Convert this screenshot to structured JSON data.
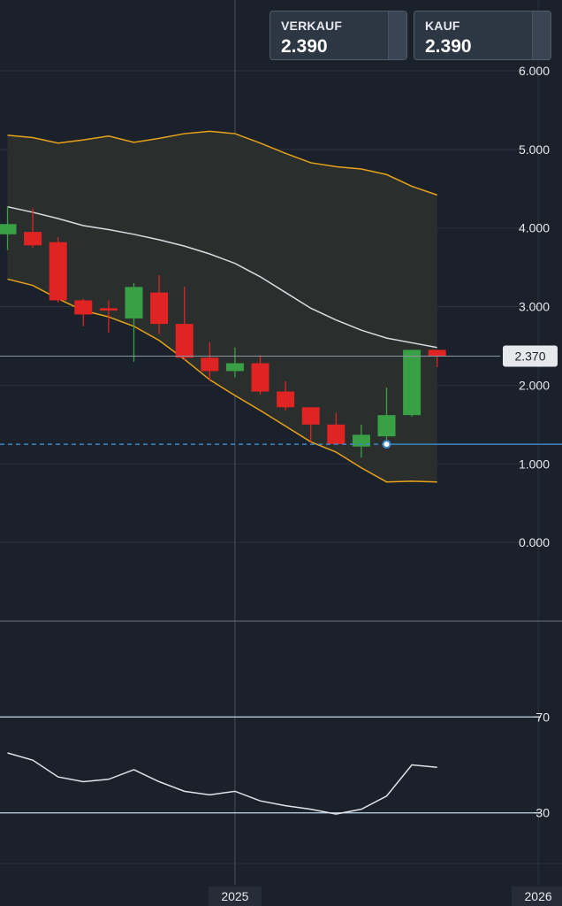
{
  "quote": {
    "sell_label": "VERKAUF",
    "sell_value": "2.390",
    "buy_label": "KAUF",
    "buy_value": "2.390"
  },
  "colors": {
    "background": "#1b212a",
    "grid": "#2c333d",
    "up": "#3aa046",
    "down": "#e02424",
    "bollinger_band": "#e8a21a",
    "middle_band": "#d9dde3",
    "rsi_line": "#e0e3e8",
    "rsi_levels": "#c3d7ec",
    "price_line": "#8d97a3",
    "reference_line": "#3d86c6"
  },
  "chart_data": [
    {
      "type": "candlestick",
      "name": "price",
      "y_ticks": [
        "6.000",
        "5.000",
        "4.000",
        "3.000",
        "2.000",
        "1.000",
        "0.000"
      ],
      "y_tick_values": [
        6,
        5,
        4,
        3,
        2,
        1,
        0
      ],
      "ylim": [
        -1.0,
        6.9
      ],
      "x_ticks": [
        "2025",
        "2026"
      ],
      "x_tick_index": [
        9,
        21
      ],
      "current_price_label": "2.370",
      "current_price": 2.37,
      "reference_level": 1.25,
      "marker": {
        "index": 15,
        "value": 1.25
      },
      "candles": [
        {
          "i": 0,
          "open": 3.92,
          "high": 4.27,
          "low": 3.72,
          "close": 4.05
        },
        {
          "i": 1,
          "open": 3.95,
          "high": 4.25,
          "low": 3.75,
          "close": 3.78
        },
        {
          "i": 2,
          "open": 3.82,
          "high": 3.88,
          "low": 3.05,
          "close": 3.08
        },
        {
          "i": 3,
          "open": 3.08,
          "high": 3.1,
          "low": 2.75,
          "close": 2.9
        },
        {
          "i": 4,
          "open": 2.98,
          "high": 3.08,
          "low": 2.67,
          "close": 2.95
        },
        {
          "i": 5,
          "open": 2.85,
          "high": 3.3,
          "low": 2.3,
          "close": 3.25
        },
        {
          "i": 6,
          "open": 3.18,
          "high": 3.4,
          "low": 2.65,
          "close": 2.78
        },
        {
          "i": 7,
          "open": 2.78,
          "high": 3.25,
          "low": 2.32,
          "close": 2.35
        },
        {
          "i": 8,
          "open": 2.35,
          "high": 2.55,
          "low": 2.05,
          "close": 2.18
        },
        {
          "i": 9,
          "open": 2.18,
          "high": 2.48,
          "low": 2.1,
          "close": 2.28
        },
        {
          "i": 10,
          "open": 2.28,
          "high": 2.38,
          "low": 1.88,
          "close": 1.92
        },
        {
          "i": 11,
          "open": 1.92,
          "high": 2.05,
          "low": 1.68,
          "close": 1.72
        },
        {
          "i": 12,
          "open": 1.72,
          "high": 1.72,
          "low": 1.28,
          "close": 1.5
        },
        {
          "i": 13,
          "open": 1.5,
          "high": 1.65,
          "low": 1.25,
          "close": 1.25
        },
        {
          "i": 14,
          "open": 1.22,
          "high": 1.5,
          "low": 1.08,
          "close": 1.37
        },
        {
          "i": 15,
          "open": 1.35,
          "high": 1.97,
          "low": 1.3,
          "close": 1.62
        },
        {
          "i": 16,
          "open": 1.62,
          "high": 2.45,
          "low": 1.6,
          "close": 2.45
        },
        {
          "i": 17,
          "open": 2.45,
          "high": 2.45,
          "low": 2.23,
          "close": 2.37
        }
      ],
      "bollinger_upper": [
        5.18,
        5.15,
        5.08,
        5.12,
        5.17,
        5.09,
        5.14,
        5.2,
        5.23,
        5.2,
        5.08,
        4.95,
        4.83,
        4.78,
        4.75,
        4.68,
        4.53,
        4.42
      ],
      "bollinger_middle": [
        4.27,
        4.2,
        4.12,
        4.03,
        3.98,
        3.92,
        3.85,
        3.77,
        3.67,
        3.55,
        3.38,
        3.18,
        2.98,
        2.83,
        2.7,
        2.6,
        2.54,
        2.48
      ],
      "bollinger_lower": [
        3.35,
        3.27,
        3.1,
        2.95,
        2.87,
        2.75,
        2.57,
        2.33,
        2.07,
        1.87,
        1.68,
        1.48,
        1.28,
        1.15,
        0.95,
        0.77,
        0.78,
        0.77
      ]
    },
    {
      "type": "line",
      "name": "RSI",
      "y_ticks": [
        "70",
        "30"
      ],
      "y_tick_values": [
        70,
        30
      ],
      "ylim": [
        0,
        110
      ],
      "values": [
        55,
        52,
        45,
        43,
        44,
        48,
        43,
        39,
        37.5,
        39,
        35,
        33,
        31.5,
        29.5,
        31.5,
        37,
        50,
        49
      ]
    }
  ]
}
